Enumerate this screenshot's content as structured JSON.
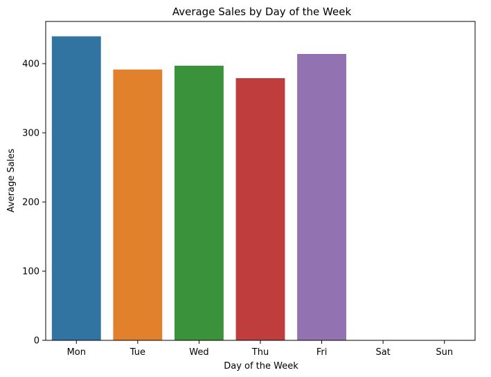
{
  "chart_data": {
    "type": "bar",
    "title": "Average Sales by Day of the Week",
    "xlabel": "Day of the Week",
    "ylabel": "Average Sales",
    "categories": [
      "Mon",
      "Tue",
      "Wed",
      "Thu",
      "Fri",
      "Sat",
      "Sun"
    ],
    "values": [
      439.5,
      391.5,
      397,
      379,
      414,
      null,
      null
    ],
    "ylim": [
      0,
      461
    ],
    "yticks": [
      0,
      100,
      200,
      300,
      400
    ],
    "colors": [
      "#3274a1",
      "#e1812c",
      "#3a923a",
      "#c03d3e",
      "#9372b2",
      "#845b53",
      "#d684bd"
    ],
    "grid": false,
    "legend": "none"
  }
}
